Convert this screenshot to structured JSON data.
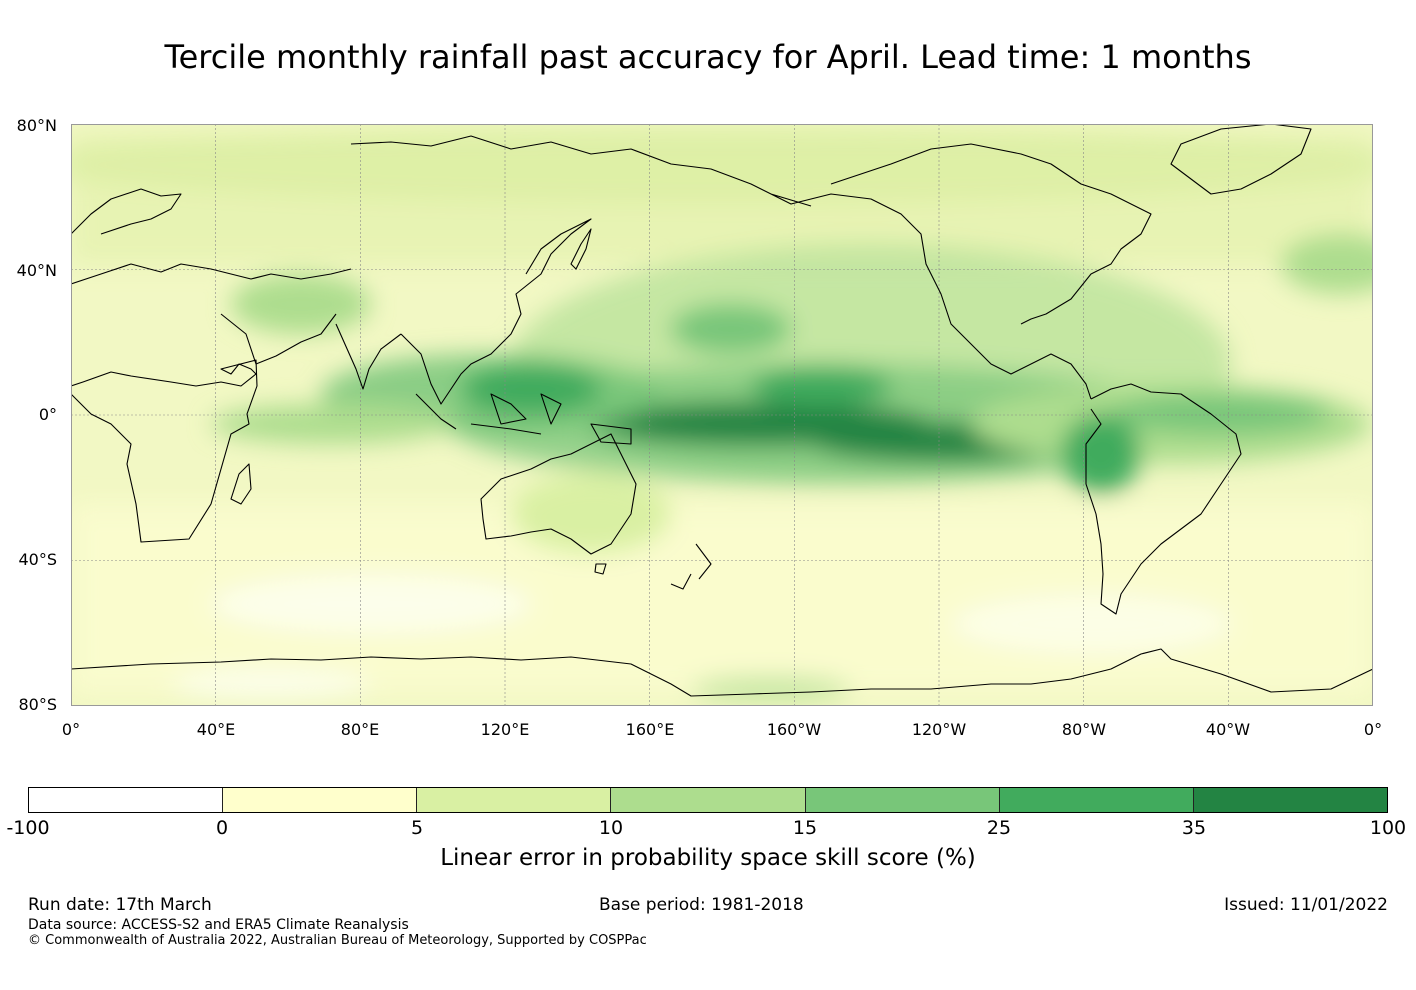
{
  "title": "Tercile monthly rainfall past accuracy for April. Lead time: 1 months",
  "map": {
    "lat_labels": [
      "80°N",
      "40°N",
      "0°",
      "40°S",
      "80°S"
    ],
    "lon_labels": [
      "0°",
      "40°E",
      "80°E",
      "120°E",
      "160°E",
      "160°W",
      "120°W",
      "80°W",
      "40°W",
      "0°"
    ]
  },
  "colorbar": {
    "ticks": [
      "-100",
      "0",
      "5",
      "10",
      "15",
      "25",
      "35",
      "100"
    ],
    "colors": [
      "#ffffff",
      "#ffffcc",
      "#d9f0a3",
      "#addd8e",
      "#78c679",
      "#41ab5d",
      "#238443"
    ],
    "label": "Linear error in probability space skill score (%)"
  },
  "footer": {
    "run_date": "Run date: 17th March",
    "base_period": "Base period: 1981-2018",
    "issued": "Issued: 11/01/2022",
    "data_source": "Data source: ACCESS-S2 and ERA5 Climate Reanalysis",
    "copyright": "© Commonwealth of Australia 2022, Australian Bureau of Meteorology, Supported by COSPPac"
  }
}
